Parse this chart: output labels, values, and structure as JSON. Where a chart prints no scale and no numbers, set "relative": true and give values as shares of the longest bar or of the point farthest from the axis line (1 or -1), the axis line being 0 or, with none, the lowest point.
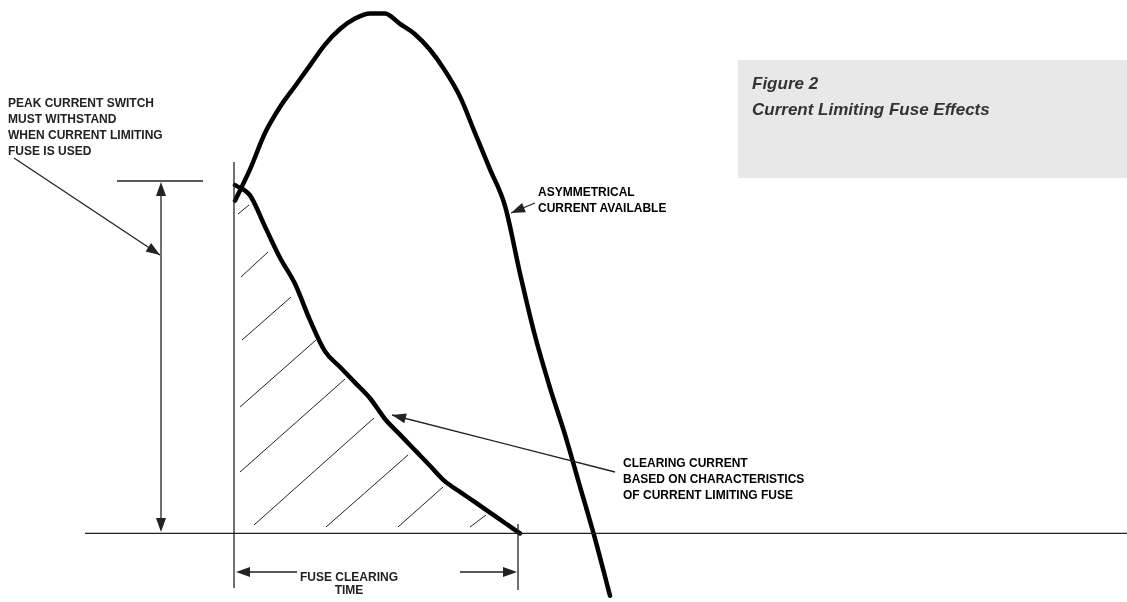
{
  "chart_data": {
    "type": "line",
    "title": "Figure 2",
    "subtitle": "Current Limiting Fuse Effects",
    "relative": true,
    "legend": false,
    "categories": [
      null,
      null,
      null,
      null,
      null,
      null,
      null,
      null,
      null,
      null,
      null,
      null,
      null,
      null,
      null,
      null,
      null,
      null,
      null,
      null,
      null,
      null,
      null,
      null,
      null,
      null
    ],
    "series": [
      {
        "name": "ASYMMETRICAL\nCURRENT AVAILABLE",
        "color": "#000000",
        "values": [
          0.64,
          0.7,
          0.77,
          0.82,
          0.86,
          0.9,
          0.94,
          0.97,
          0.99,
          1,
          1,
          0.98,
          0.96,
          0.93,
          0.89,
          0.84,
          0.77,
          0.7,
          0.63,
          0.5,
          0.38,
          0.28,
          0.19,
          0.09,
          -0.01,
          -0.12
        ]
      },
      {
        "name": "CLEARING CURRENT\nBASED ON CHARACTERISTICS\nOF CURRENT LIMITING FUSE",
        "color": "#000000",
        "values": [
          0.67,
          0.65,
          0.59,
          0.53,
          0.48,
          0.41,
          0.35,
          0.32,
          0.29,
          0.26,
          0.22,
          0.19,
          0.16,
          0.13,
          0.1,
          0.08,
          0.06,
          0.04,
          0.02,
          0,
          null,
          null,
          null,
          null,
          null,
          null
        ]
      }
    ],
    "annotations": [
      "PEAK CURRENT SWITCH\nMUST WITHSTAND\nWHEN CURRENT LIMITING\nFUSE IS USED",
      "FUSE CLEARING\nTIME"
    ]
  }
}
